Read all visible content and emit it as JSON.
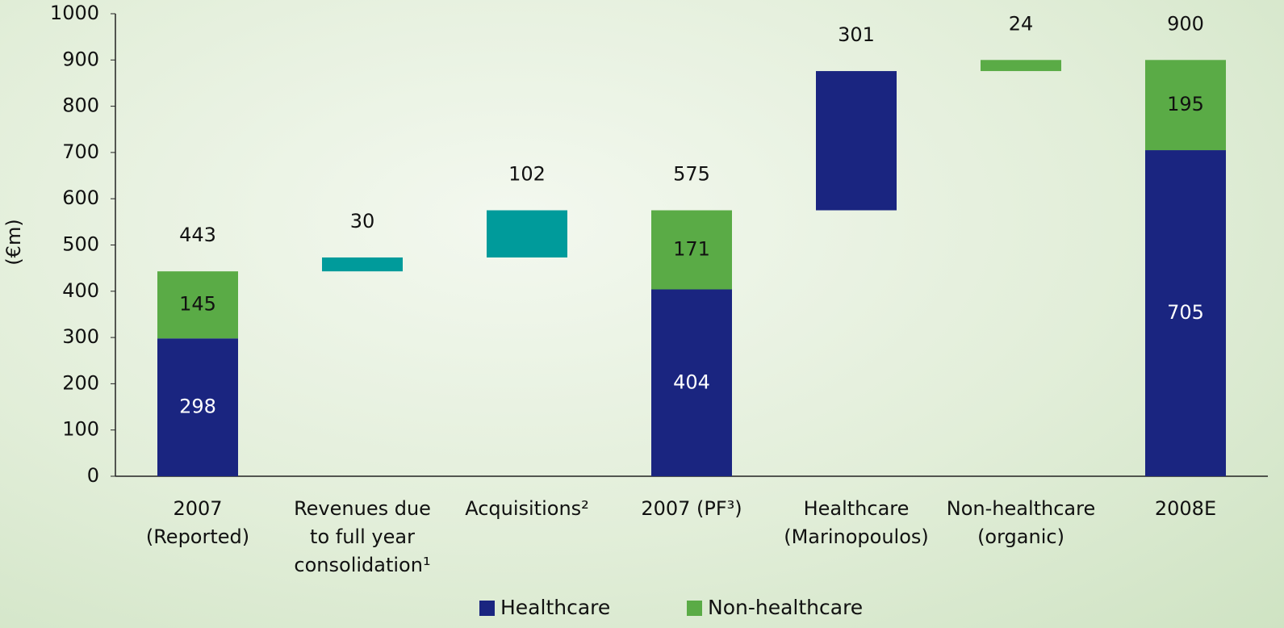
{
  "chart_data": {
    "type": "waterfall",
    "ylabel": "(€m)",
    "categories": [
      [
        "2007",
        "(Reported)"
      ],
      [
        "Revenues due",
        "to full year",
        "consolidation¹"
      ],
      [
        "Acquisitions²"
      ],
      [
        "2007 (PF³)"
      ],
      [
        "Healthcare",
        "(Marinopoulos)"
      ],
      [
        "Non-healthcare",
        "(organic)"
      ],
      [
        "2008E"
      ]
    ],
    "bar_kind": [
      "total",
      "step",
      "step",
      "total",
      "step",
      "step",
      "total"
    ],
    "series": [
      {
        "name": "Healthcare",
        "color": "#1a2580",
        "label_color": "#ffffff",
        "values": [
          298,
          null,
          null,
          404,
          301,
          null,
          705
        ]
      },
      {
        "name": "Non-healthcare",
        "color": "#5aab46",
        "label_color": "#111111",
        "values": [
          145,
          null,
          null,
          171,
          null,
          24,
          195
        ]
      }
    ],
    "other_color": "#009b9b",
    "other_values": [
      null,
      30,
      102,
      null,
      null,
      null,
      null
    ],
    "totals": [
      443,
      30,
      102,
      575,
      301,
      24,
      900
    ],
    "ylim": [
      0,
      1000
    ],
    "yticks": [
      0,
      100,
      200,
      300,
      400,
      500,
      600,
      700,
      800,
      900,
      1000
    ],
    "grid": false,
    "legend": "bottom"
  }
}
